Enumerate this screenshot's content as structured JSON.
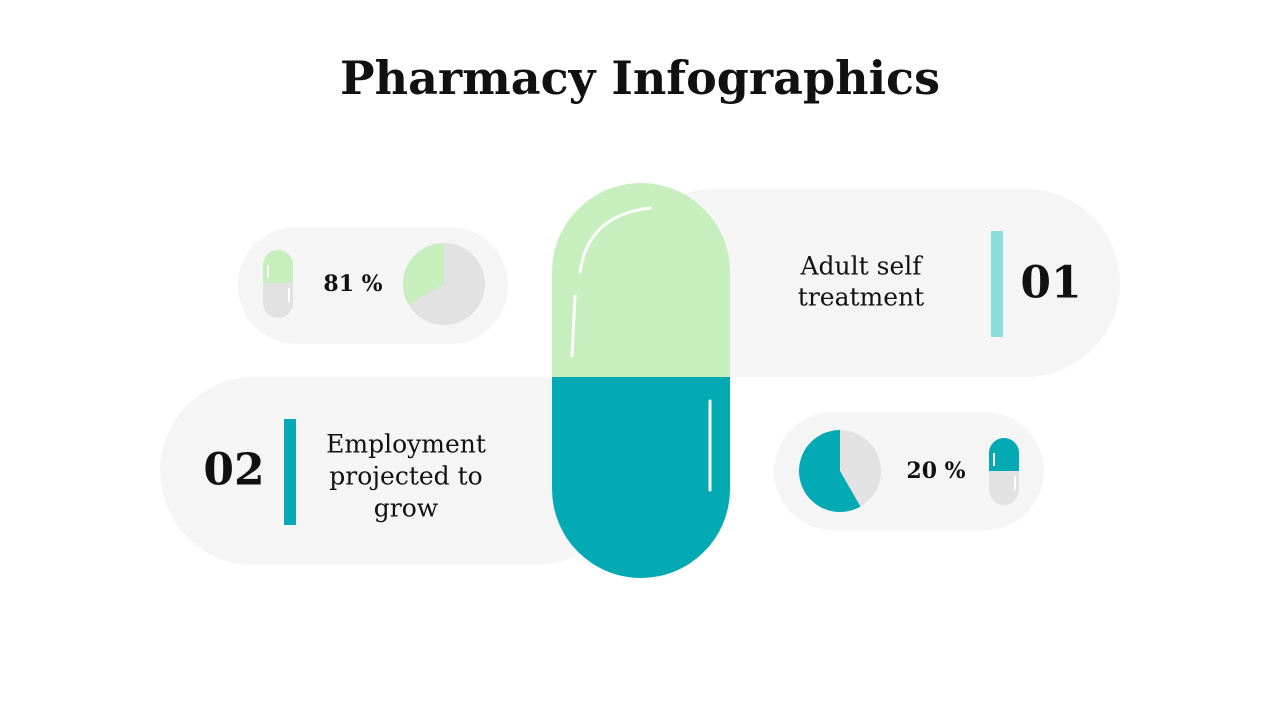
{
  "title": "Pharmacy Infographics",
  "items": [
    {
      "number": "01",
      "label": [
        "Adult self",
        "treatment"
      ]
    },
    {
      "number": "02",
      "label": [
        "Employment",
        "projected to",
        "grow"
      ]
    }
  ],
  "stats": [
    "81 %",
    "20 %"
  ]
}
